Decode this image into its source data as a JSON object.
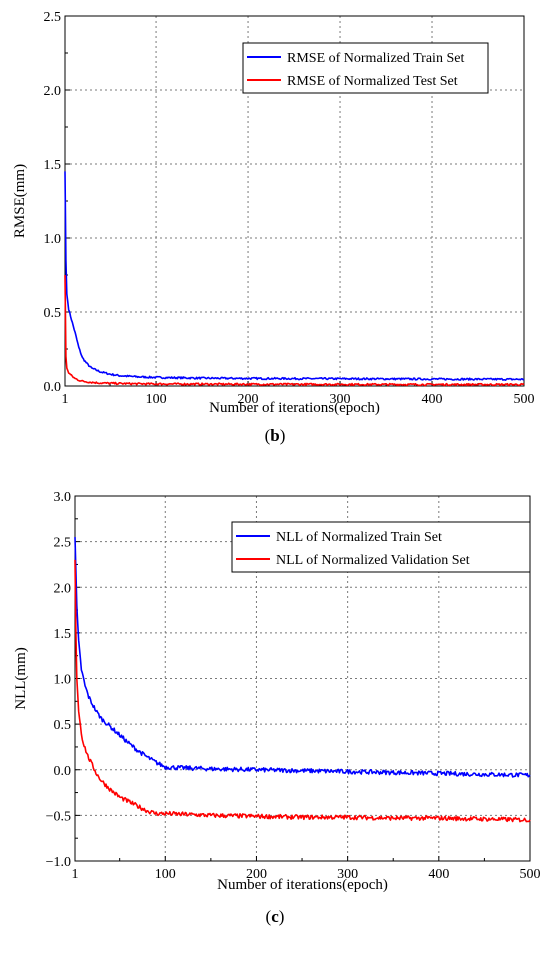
{
  "chart_data": [
    {
      "type": "line",
      "panel_label": "b",
      "title": "",
      "xlabel": "Number of iterations(epoch)",
      "ylabel": "RMSE(mm)",
      "xlim": [
        1,
        500
      ],
      "ylim": [
        0,
        2.5
      ],
      "x_ticks": [
        1,
        100,
        200,
        300,
        400,
        500
      ],
      "y_ticks": [
        0.0,
        0.5,
        1.0,
        1.5,
        2.0,
        2.5
      ],
      "x_tick_labels": [
        "1",
        "100",
        "200",
        "300",
        "400",
        "500"
      ],
      "y_tick_labels": [
        "0.0",
        "0.5",
        "1.0",
        "1.5",
        "2.0",
        "2.5"
      ],
      "grid": true,
      "legend_position": "top-right",
      "series": [
        {
          "name": "RMSE of Normalized Train Set",
          "color": "#0000ff",
          "x": [
            1,
            2,
            3,
            5,
            8,
            12,
            16,
            20,
            25,
            30,
            40,
            50,
            60,
            80,
            100,
            150,
            200,
            250,
            300,
            350,
            400,
            450,
            500
          ],
          "y": [
            1.45,
            0.85,
            0.62,
            0.52,
            0.45,
            0.36,
            0.26,
            0.19,
            0.15,
            0.12,
            0.095,
            0.08,
            0.07,
            0.062,
            0.058,
            0.053,
            0.051,
            0.05,
            0.049,
            0.048,
            0.047,
            0.046,
            0.045
          ]
        },
        {
          "name": "RMSE of Normalized Test Set",
          "color": "#ff0000",
          "x": [
            1,
            2,
            3,
            5,
            8,
            12,
            16,
            20,
            30,
            40,
            60,
            80,
            100,
            200,
            300,
            400,
            500
          ],
          "y": [
            0.75,
            0.2,
            0.12,
            0.09,
            0.07,
            0.05,
            0.04,
            0.032,
            0.025,
            0.02,
            0.017,
            0.015,
            0.014,
            0.012,
            0.011,
            0.01,
            0.01
          ]
        }
      ]
    },
    {
      "type": "line",
      "panel_label": "c",
      "title": "",
      "xlabel": "Number of iterations(epoch)",
      "ylabel": "NLL(mm)",
      "xlim": [
        1,
        500
      ],
      "ylim": [
        -1.0,
        3.0
      ],
      "x_ticks": [
        1,
        100,
        200,
        300,
        400,
        500
      ],
      "y_ticks": [
        -1.0,
        -0.5,
        0.0,
        0.5,
        1.0,
        1.5,
        2.0,
        2.5,
        3.0
      ],
      "x_tick_labels": [
        "1",
        "100",
        "200",
        "300",
        "400",
        "500"
      ],
      "y_tick_labels": [
        "−1.0",
        "−0.5",
        "0.0",
        "0.5",
        "1.0",
        "1.5",
        "2.0",
        "2.5",
        "3.0"
      ],
      "grid": true,
      "legend_position": "top-right",
      "series": [
        {
          "name": "NLL of Normalized Train Set",
          "color": "#0000ff",
          "x": [
            1,
            3,
            5,
            8,
            12,
            16,
            20,
            25,
            30,
            40,
            50,
            60,
            70,
            80,
            90,
            100,
            120,
            150,
            200,
            250,
            300,
            350,
            400,
            450,
            500
          ],
          "y": [
            2.55,
            1.8,
            1.4,
            1.1,
            0.92,
            0.8,
            0.72,
            0.63,
            0.56,
            0.47,
            0.38,
            0.29,
            0.21,
            0.14,
            0.08,
            0.03,
            0.02,
            0.01,
            0.0,
            -0.01,
            -0.02,
            -0.03,
            -0.04,
            -0.05,
            -0.06
          ]
        },
        {
          "name": "NLL of Normalized Validation Set",
          "color": "#ff0000",
          "x": [
            1,
            2,
            3,
            5,
            8,
            10,
            15,
            20,
            25,
            30,
            40,
            50,
            60,
            70,
            80,
            90,
            100,
            150,
            200,
            250,
            300,
            350,
            400,
            450,
            500
          ],
          "y": [
            2.3,
            1.5,
            1.0,
            0.65,
            0.4,
            0.3,
            0.15,
            0.05,
            -0.05,
            -0.12,
            -0.22,
            -0.3,
            -0.35,
            -0.4,
            -0.45,
            -0.48,
            -0.48,
            -0.5,
            -0.51,
            -0.52,
            -0.52,
            -0.53,
            -0.53,
            -0.54,
            -0.55
          ]
        }
      ]
    }
  ]
}
